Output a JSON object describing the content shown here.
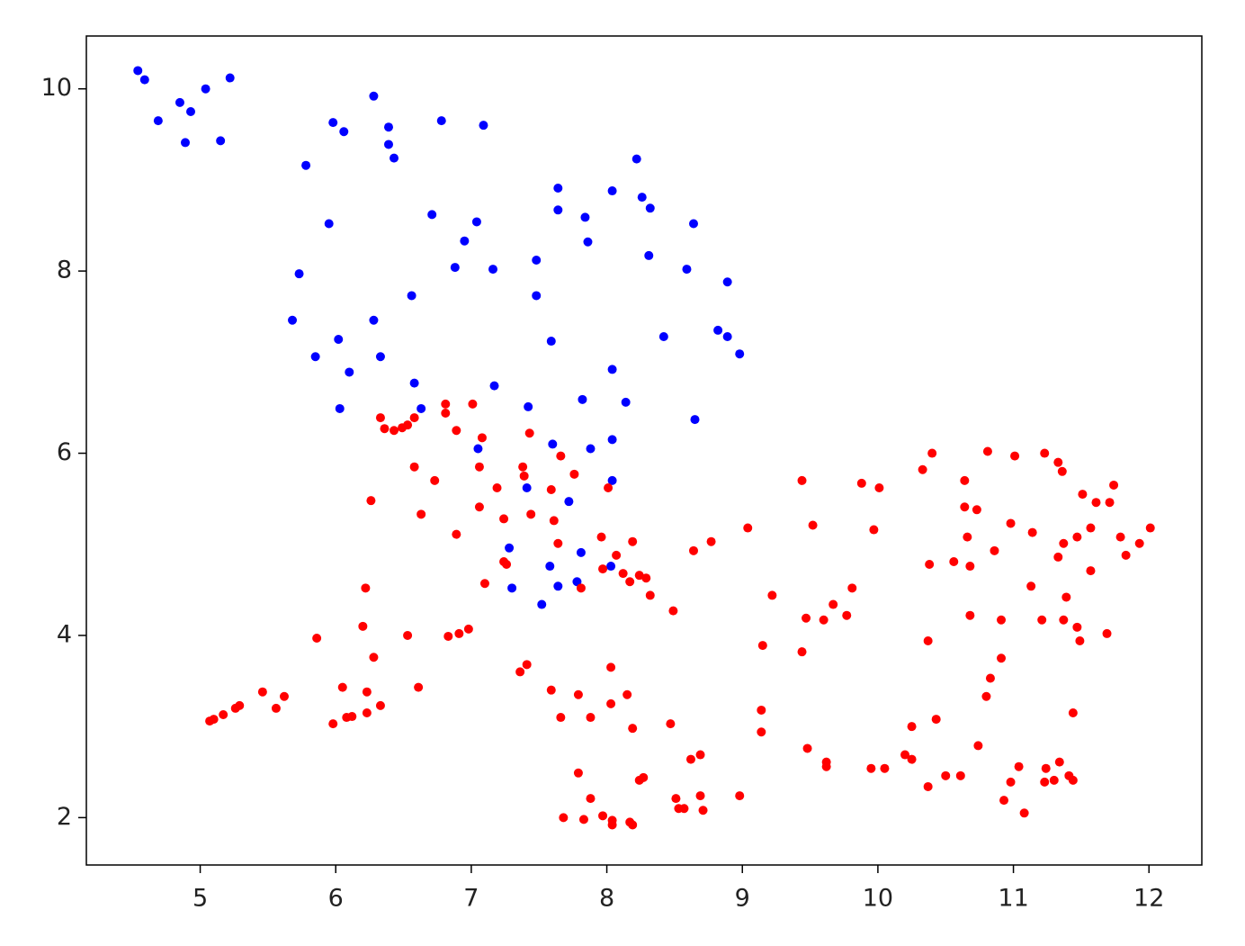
{
  "chart_data": {
    "type": "scatter",
    "xlim": [
      4.16,
      12.39
    ],
    "ylim": [
      1.48,
      10.58
    ],
    "xticks": [
      5,
      6,
      7,
      8,
      9,
      10,
      11,
      12
    ],
    "yticks": [
      2,
      4,
      6,
      8,
      10
    ],
    "series": [
      {
        "color": "#0000ff",
        "x": [
          4.54,
          4.59,
          4.69,
          4.85,
          4.89,
          4.93,
          5.04,
          5.15,
          5.22,
          6.28,
          5.98,
          6.06,
          6.39,
          6.39,
          6.43,
          6.78,
          7.09,
          5.78,
          5.95,
          5.73,
          5.68,
          5.85,
          6.02,
          6.03,
          6.1,
          6.28,
          6.33,
          6.56,
          6.58,
          6.63,
          6.71,
          6.95,
          7.04,
          6.88,
          7.16,
          7.17,
          7.05,
          7.42,
          7.48,
          7.48,
          7.59,
          7.6,
          7.41,
          7.28,
          7.3,
          7.52,
          7.58,
          7.64,
          7.72,
          7.78,
          7.81,
          7.64,
          7.64,
          7.84,
          7.86,
          7.82,
          7.88,
          8.04,
          8.04,
          8.04,
          8.04,
          8.03,
          8.14,
          8.22,
          8.26,
          8.32,
          8.31,
          8.42,
          8.59,
          8.64,
          8.65,
          8.82,
          8.89,
          8.89,
          8.98
        ],
        "values": [
          10.2,
          10.1,
          9.65,
          9.85,
          9.41,
          9.75,
          10.0,
          9.43,
          10.12,
          9.92,
          9.63,
          9.53,
          9.58,
          9.39,
          9.24,
          9.65,
          9.6,
          9.16,
          8.52,
          7.97,
          7.46,
          7.06,
          7.25,
          6.49,
          6.89,
          7.46,
          7.06,
          7.73,
          6.77,
          6.49,
          8.62,
          8.33,
          8.54,
          8.04,
          8.02,
          6.74,
          6.05,
          6.51,
          8.12,
          7.73,
          7.23,
          6.1,
          5.62,
          4.96,
          4.52,
          4.34,
          4.76,
          4.54,
          5.47,
          4.59,
          4.91,
          8.91,
          8.67,
          8.59,
          8.32,
          6.59,
          6.05,
          8.88,
          6.92,
          6.15,
          5.7,
          4.76,
          6.56,
          9.23,
          8.81,
          8.69,
          8.17,
          7.28,
          8.02,
          8.52,
          6.37,
          7.35,
          7.88,
          7.28,
          7.09
        ]
      },
      {
        "color": "#ff0000",
        "x": [
          5.07,
          5.1,
          5.17,
          5.26,
          5.29,
          5.46,
          5.56,
          5.62,
          5.86,
          5.98,
          6.05,
          6.08,
          6.12,
          6.22,
          6.2,
          6.23,
          6.23,
          6.28,
          6.26,
          6.33,
          6.33,
          6.36,
          6.43,
          6.49,
          6.53,
          6.58,
          6.53,
          6.58,
          6.61,
          6.63,
          6.73,
          6.81,
          6.81,
          6.89,
          6.89,
          6.83,
          6.91,
          6.98,
          7.01,
          7.06,
          7.06,
          7.08,
          7.1,
          7.19,
          7.24,
          7.24,
          7.26,
          7.36,
          7.41,
          7.38,
          7.39,
          7.43,
          7.44,
          7.59,
          7.61,
          7.59,
          7.64,
          7.66,
          7.66,
          7.68,
          7.76,
          7.79,
          7.79,
          7.81,
          7.83,
          7.88,
          7.88,
          7.96,
          7.97,
          7.97,
          8.01,
          8.03,
          8.03,
          8.04,
          8.04,
          8.07,
          8.12,
          8.15,
          8.17,
          8.19,
          8.19,
          8.17,
          8.19,
          8.24,
          8.24,
          8.27,
          8.29,
          8.32,
          8.47,
          8.49,
          8.51,
          8.53,
          8.57,
          8.64,
          8.62,
          8.69,
          8.69,
          8.71,
          8.77,
          8.98,
          9.04,
          9.14,
          9.14,
          9.15,
          9.22,
          9.44,
          9.44,
          9.47,
          9.48,
          9.52,
          9.6,
          9.62,
          9.62,
          9.67,
          9.77,
          9.81,
          9.88,
          9.97,
          9.95,
          10.01,
          10.05,
          10.2,
          10.25,
          10.25,
          10.33,
          10.37,
          10.38,
          10.37,
          10.4,
          10.43,
          10.5,
          10.56,
          10.61,
          10.64,
          10.64,
          10.66,
          10.68,
          10.68,
          10.73,
          10.74,
          10.8,
          10.83,
          10.81,
          10.86,
          10.91,
          10.91,
          10.93,
          10.98,
          10.98,
          11.01,
          11.04,
          11.08,
          11.13,
          11.14,
          11.23,
          11.21,
          11.23,
          11.24,
          11.3,
          11.33,
          11.33,
          11.34,
          11.36,
          11.37,
          11.37,
          11.39,
          11.41,
          11.44,
          11.44,
          11.47,
          11.47,
          11.49,
          11.51,
          11.57,
          11.57,
          11.61,
          11.69,
          11.71,
          11.74,
          11.79,
          11.83,
          11.93,
          12.01
        ],
        "values": [
          3.06,
          3.08,
          3.13,
          3.2,
          3.23,
          3.38,
          3.2,
          3.33,
          3.97,
          3.03,
          3.43,
          3.1,
          3.11,
          4.52,
          4.1,
          3.38,
          3.15,
          3.76,
          5.48,
          3.23,
          6.39,
          6.27,
          6.25,
          6.28,
          6.31,
          6.39,
          4.0,
          5.85,
          3.43,
          5.33,
          5.7,
          6.44,
          6.54,
          6.25,
          5.11,
          3.99,
          4.02,
          4.07,
          6.54,
          5.41,
          5.85,
          6.17,
          4.57,
          5.62,
          5.28,
          4.81,
          4.78,
          3.6,
          3.68,
          5.85,
          5.75,
          6.22,
          5.33,
          5.6,
          5.26,
          3.4,
          5.01,
          3.1,
          5.97,
          2.0,
          5.77,
          2.49,
          3.35,
          4.52,
          1.98,
          3.1,
          2.21,
          5.08,
          4.73,
          2.02,
          5.62,
          3.65,
          3.25,
          1.97,
          1.92,
          4.88,
          4.68,
          3.35,
          4.59,
          5.03,
          2.98,
          1.95,
          1.92,
          4.66,
          2.41,
          2.44,
          4.63,
          4.44,
          3.03,
          4.27,
          2.21,
          2.1,
          2.1,
          4.93,
          2.64,
          2.69,
          2.24,
          2.08,
          5.03,
          2.24,
          5.18,
          3.18,
          2.94,
          3.89,
          4.44,
          5.7,
          3.82,
          4.19,
          2.76,
          5.21,
          4.17,
          2.56,
          2.61,
          4.34,
          4.22,
          4.52,
          5.67,
          5.16,
          2.54,
          5.62,
          2.54,
          2.69,
          3.0,
          2.64,
          5.82,
          3.94,
          4.78,
          2.34,
          6.0,
          3.08,
          2.46,
          4.81,
          2.46,
          5.7,
          5.41,
          5.08,
          4.76,
          4.22,
          5.38,
          2.79,
          3.33,
          3.53,
          6.02,
          4.93,
          4.17,
          3.75,
          2.19,
          5.23,
          2.39,
          5.97,
          2.56,
          2.05,
          4.54,
          5.13,
          6.0,
          4.17,
          2.39,
          2.54,
          2.41,
          5.9,
          4.86,
          2.61,
          5.8,
          5.01,
          4.17,
          4.42,
          2.46,
          2.41,
          3.15,
          5.08,
          4.09,
          3.94,
          5.55,
          5.18,
          4.71,
          5.46,
          4.02,
          5.46,
          5.65,
          5.08,
          4.88,
          5.01,
          5.18
        ]
      }
    ]
  }
}
